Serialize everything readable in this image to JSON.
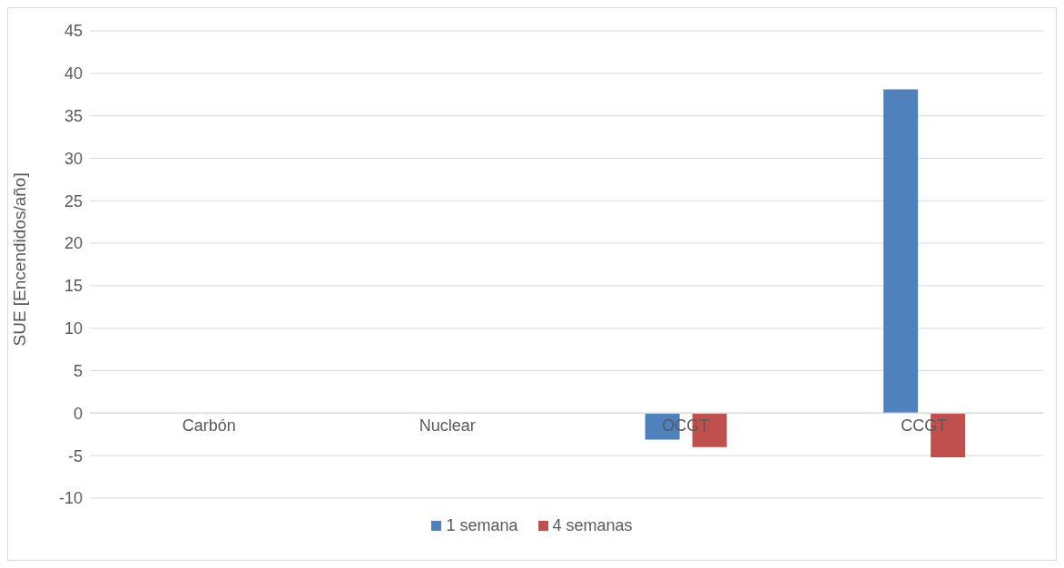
{
  "chart_data": {
    "type": "bar",
    "ylabel": "SUE [Encendidos/año]",
    "categories": [
      "Carbón",
      "Nuclear",
      "OCGT",
      "CCGT"
    ],
    "series": [
      {
        "name": "1 semana",
        "color": "#4f81bd",
        "values": [
          0,
          0,
          -3.1,
          38.1
        ]
      },
      {
        "name": "4 semanas",
        "color": "#c0504d",
        "values": [
          0,
          0,
          -4,
          -5.2
        ]
      }
    ],
    "ylim": [
      -10,
      45
    ],
    "yticks": [
      -10,
      -5,
      0,
      5,
      10,
      15,
      20,
      25,
      30,
      35,
      40,
      45
    ],
    "grid": "y",
    "legend": "bottom"
  }
}
